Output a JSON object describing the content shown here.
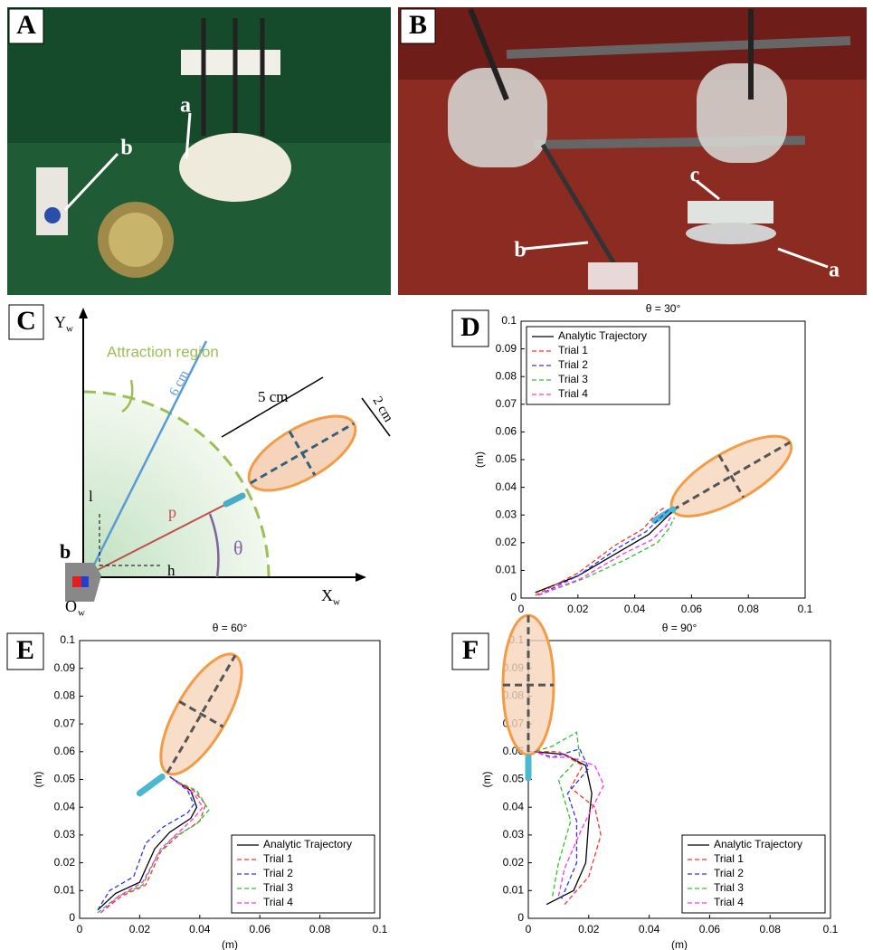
{
  "panels": {
    "A": {
      "label": "A",
      "annotations": [
        "a",
        "b"
      ]
    },
    "B": {
      "label": "B",
      "annotations": [
        "c",
        "b",
        "a"
      ]
    }
  },
  "diagram": {
    "label": "C",
    "y_axis": {
      "main": "Y",
      "sub": "w"
    },
    "x_axis": {
      "main": "X",
      "sub": "w"
    },
    "origin": {
      "main": "O",
      "sub": "w"
    },
    "region": "Attraction region",
    "radius": "6 cm",
    "length": "5 cm",
    "width": "2 cm",
    "l": "l",
    "h": "h",
    "theta": "θ",
    "vector": "p",
    "sensor": "b"
  },
  "chart_data": [
    {
      "type": "line",
      "panel_label": "D",
      "title": "θ = 30°",
      "ylabel": "(m)",
      "legend": "upper left",
      "xlim": [
        0,
        0.1
      ],
      "ylim": [
        0,
        0.1
      ],
      "xticks": [
        0,
        0.02,
        0.04,
        0.06,
        0.08,
        0.1
      ],
      "yticks": [
        0,
        0.01,
        0.02,
        0.03,
        0.04,
        0.05,
        0.06,
        0.07,
        0.08,
        0.09,
        0.1
      ],
      "series": [
        {
          "name": "Analytic Trajectory",
          "color": "#000000",
          "style": "solid",
          "x": [
            0.005,
            0.02,
            0.035,
            0.045,
            0.05,
            0.053
          ],
          "values": [
            0.002,
            0.008,
            0.017,
            0.023,
            0.028,
            0.031
          ]
        },
        {
          "name": "Trial 1",
          "color": "#ff3030",
          "style": "dashed",
          "x": [
            0.005,
            0.02,
            0.033,
            0.043,
            0.048,
            0.051
          ],
          "values": [
            0.001,
            0.009,
            0.019,
            0.025,
            0.031,
            0.033
          ]
        },
        {
          "name": "Trial 2",
          "color": "#3030ff",
          "style": "dashed",
          "x": [
            0.006,
            0.02,
            0.034,
            0.044,
            0.049,
            0.052
          ],
          "values": [
            0.001,
            0.008,
            0.018,
            0.024,
            0.029,
            0.032
          ]
        },
        {
          "name": "Trial 3",
          "color": "#30c030",
          "style": "dashed",
          "x": [
            0.006,
            0.022,
            0.037,
            0.048,
            0.052,
            0.054
          ],
          "values": [
            0.001,
            0.007,
            0.014,
            0.02,
            0.025,
            0.029
          ]
        },
        {
          "name": "Trial 4",
          "color": "#ff30ff",
          "style": "dashed",
          "x": [
            0.006,
            0.021,
            0.036,
            0.046,
            0.051,
            0.053
          ],
          "values": [
            0.001,
            0.007,
            0.016,
            0.021,
            0.026,
            0.03
          ]
        }
      ]
    },
    {
      "type": "line",
      "panel_label": "E",
      "title": "θ = 60°",
      "xlabel": "(m)",
      "ylabel": "(m)",
      "legend": "lower right",
      "xlim": [
        0,
        0.1
      ],
      "ylim": [
        0,
        0.1
      ],
      "xticks": [
        0,
        0.02,
        0.04,
        0.06,
        0.08,
        0.1
      ],
      "yticks": [
        0,
        0.01,
        0.02,
        0.03,
        0.04,
        0.05,
        0.06,
        0.07,
        0.08,
        0.09,
        0.1
      ],
      "series": [
        {
          "name": "Analytic Trajectory",
          "color": "#000000",
          "style": "solid",
          "x": [
            0.006,
            0.012,
            0.02,
            0.025,
            0.03,
            0.037,
            0.039,
            0.037,
            0.03
          ],
          "values": [
            0.003,
            0.009,
            0.013,
            0.025,
            0.031,
            0.036,
            0.04,
            0.046,
            0.051
          ]
        },
        {
          "name": "Trial 1",
          "color": "#ff3030",
          "style": "dashed",
          "x": [
            0.007,
            0.014,
            0.022,
            0.027,
            0.033,
            0.04,
            0.042,
            0.038,
            0.031
          ],
          "values": [
            0.002,
            0.008,
            0.012,
            0.024,
            0.03,
            0.035,
            0.041,
            0.046,
            0.05
          ]
        },
        {
          "name": "Trial 2",
          "color": "#3030ff",
          "style": "dashed",
          "x": [
            0.006,
            0.01,
            0.018,
            0.022,
            0.028,
            0.036,
            0.038,
            0.036,
            0.03
          ],
          "values": [
            0.003,
            0.01,
            0.015,
            0.027,
            0.033,
            0.038,
            0.041,
            0.046,
            0.051
          ]
        },
        {
          "name": "Trial 3",
          "color": "#30c030",
          "style": "dashed",
          "x": [
            0.006,
            0.013,
            0.021,
            0.026,
            0.031,
            0.039,
            0.043,
            0.039,
            0.031
          ],
          "values": [
            0.002,
            0.008,
            0.012,
            0.023,
            0.029,
            0.034,
            0.039,
            0.046,
            0.05
          ]
        },
        {
          "name": "Trial 4",
          "color": "#ff30ff",
          "style": "dashed",
          "x": [
            0.007,
            0.013,
            0.021,
            0.027,
            0.032,
            0.038,
            0.041,
            0.038,
            0.031
          ],
          "values": [
            0.002,
            0.008,
            0.013,
            0.025,
            0.03,
            0.036,
            0.04,
            0.045,
            0.05
          ]
        }
      ]
    },
    {
      "type": "line",
      "panel_label": "F",
      "title": "θ = 90°",
      "xlabel": "(m)",
      "ylabel": "(m)",
      "legend": "lower right",
      "xlim": [
        0,
        0.1
      ],
      "ylim": [
        0,
        0.1
      ],
      "xticks": [
        0,
        0.02,
        0.04,
        0.06,
        0.08,
        0.1
      ],
      "yticks": [
        0,
        0.01,
        0.02,
        0.03,
        0.04,
        0.05,
        0.06,
        0.07,
        0.08,
        0.09,
        0.1
      ],
      "series": [
        {
          "name": "Analytic Trajectory",
          "color": "#000000",
          "style": "solid",
          "x": [
            0.006,
            0.015,
            0.019,
            0.02,
            0.021,
            0.019,
            0.012,
            0.002
          ],
          "values": [
            0.005,
            0.01,
            0.02,
            0.035,
            0.045,
            0.055,
            0.059,
            0.06
          ]
        },
        {
          "name": "Trial 1",
          "color": "#ff3030",
          "style": "dashed",
          "x": [
            0.012,
            0.02,
            0.024,
            0.022,
            0.014,
            0.018,
            0.01,
            0.002
          ],
          "values": [
            0.005,
            0.015,
            0.03,
            0.04,
            0.047,
            0.055,
            0.06,
            0.06
          ]
        },
        {
          "name": "Trial 2",
          "color": "#3030ff",
          "style": "dashed",
          "x": [
            0.011,
            0.016,
            0.016,
            0.013,
            0.02,
            0.017,
            0.008,
            0.002
          ],
          "values": [
            0.007,
            0.02,
            0.035,
            0.045,
            0.054,
            0.061,
            0.058,
            0.06
          ]
        },
        {
          "name": "Trial 3",
          "color": "#30c030",
          "style": "dashed",
          "x": [
            0.008,
            0.01,
            0.014,
            0.01,
            0.017,
            0.016,
            0.008,
            0.002
          ],
          "values": [
            0.008,
            0.02,
            0.035,
            0.05,
            0.058,
            0.067,
            0.062,
            0.06
          ]
        },
        {
          "name": "Trial 4",
          "color": "#ff30ff",
          "style": "dashed",
          "x": [
            0.01,
            0.012,
            0.018,
            0.025,
            0.022,
            0.014,
            0.007,
            0.002
          ],
          "values": [
            0.008,
            0.018,
            0.033,
            0.048,
            0.055,
            0.058,
            0.058,
            0.06
          ]
        }
      ]
    }
  ]
}
